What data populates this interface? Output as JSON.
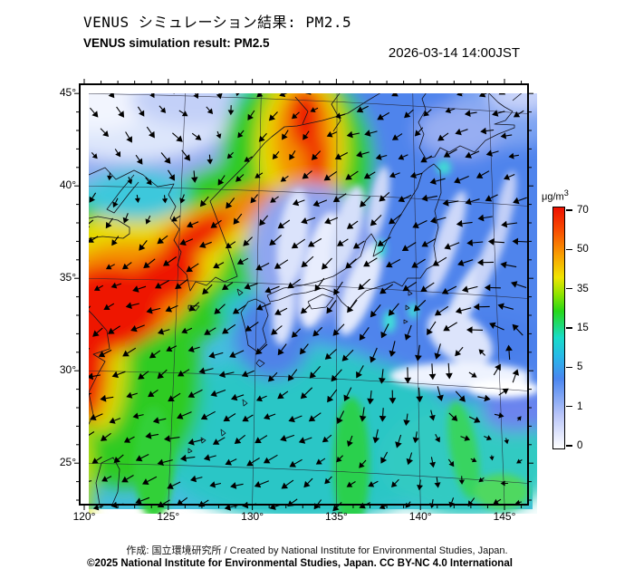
{
  "header": {
    "title_jp": "VENUS シミュレーション結果: PM2.5",
    "title_en": "VENUS simulation result: PM2.5",
    "timestamp": "2026-03-14 14:00JST"
  },
  "map": {
    "x_tick_labels": [
      "120°",
      "125°",
      "130°",
      "135°",
      "140°",
      "145°"
    ],
    "y_tick_labels": [
      "45°",
      "40°",
      "35°",
      "30°",
      "25°"
    ],
    "lon_range": [
      120,
      146
    ],
    "lat_range": [
      23,
      46
    ]
  },
  "colorbar": {
    "unit_base": "μg/m",
    "unit_sup": "3",
    "tick_labels": [
      "70",
      "50",
      "35",
      "15",
      "5",
      "1",
      "0"
    ],
    "stops": [
      [
        0.0,
        "#ffffff"
      ],
      [
        0.14,
        "#b8c4f8"
      ],
      [
        0.29,
        "#4a86f0"
      ],
      [
        0.38,
        "#28b8e8"
      ],
      [
        0.46,
        "#18dcc8"
      ],
      [
        0.57,
        "#28d818"
      ],
      [
        0.64,
        "#90e400"
      ],
      [
        0.71,
        "#f0e400"
      ],
      [
        0.8,
        "#f8a000"
      ],
      [
        0.9,
        "#f85000"
      ],
      [
        1.0,
        "#ee1000"
      ]
    ]
  },
  "footer": {
    "line1": "作成: 国立環境研究所 / Created by National Institute for Environmental Studies, Japan.",
    "line2": "©2025 National Institute for Environmental Studies, Japan. CC BY-NC 4.0 International"
  }
}
